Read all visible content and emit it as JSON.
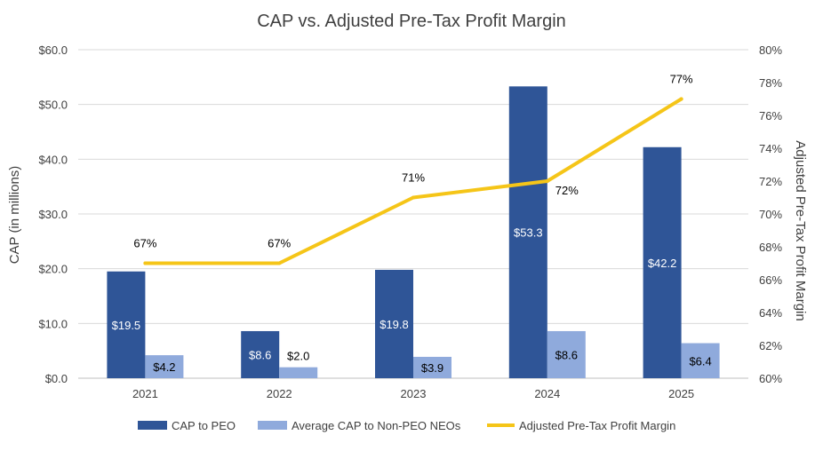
{
  "chart_data": {
    "type": "bar",
    "title": "CAP vs. Adjusted Pre-Tax Profit Margin",
    "xlabel": "",
    "ylabel": "CAP (in millions)",
    "y2label": "Adjusted Pre-Tax Profit Margin",
    "categories": [
      "2021",
      "2022",
      "2023",
      "2024",
      "2025"
    ],
    "ylim": [
      0,
      60
    ],
    "yticks": [
      0,
      10,
      20,
      30,
      40,
      50,
      60
    ],
    "ytick_labels": [
      "$0.0",
      "$10.0",
      "$20.0",
      "$30.0",
      "$40.0",
      "$50.0",
      "$60.0"
    ],
    "y2lim": [
      60,
      80
    ],
    "y2ticks": [
      60,
      62,
      64,
      66,
      68,
      70,
      72,
      74,
      76,
      78,
      80
    ],
    "y2tick_labels": [
      "60%",
      "62%",
      "64%",
      "66%",
      "68%",
      "70%",
      "72%",
      "74%",
      "76%",
      "78%",
      "80%"
    ],
    "grid": true,
    "legend_position": "bottom",
    "series": [
      {
        "name": "CAP to PEO",
        "kind": "bar",
        "axis": "left",
        "color": "#2F5597",
        "values": [
          19.5,
          8.6,
          19.8,
          53.3,
          42.2
        ],
        "labels": [
          "$19.5",
          "$8.6",
          "$19.8",
          "$53.3",
          "$42.2"
        ]
      },
      {
        "name": "Average CAP to Non-PEO NEOs",
        "kind": "bar",
        "axis": "left",
        "color": "#8FAADC",
        "values": [
          4.2,
          2.0,
          3.9,
          8.6,
          6.4
        ],
        "labels": [
          "$4.2",
          "$2.0",
          "$3.9",
          "$8.6",
          "$6.4"
        ]
      },
      {
        "name": "Adjusted Pre-Tax Profit Margin",
        "kind": "line",
        "axis": "right",
        "color": "#F5C518",
        "values": [
          67,
          67,
          71,
          72,
          77
        ],
        "labels": [
          "67%",
          "67%",
          "71%",
          "72%",
          "77%"
        ]
      }
    ]
  }
}
